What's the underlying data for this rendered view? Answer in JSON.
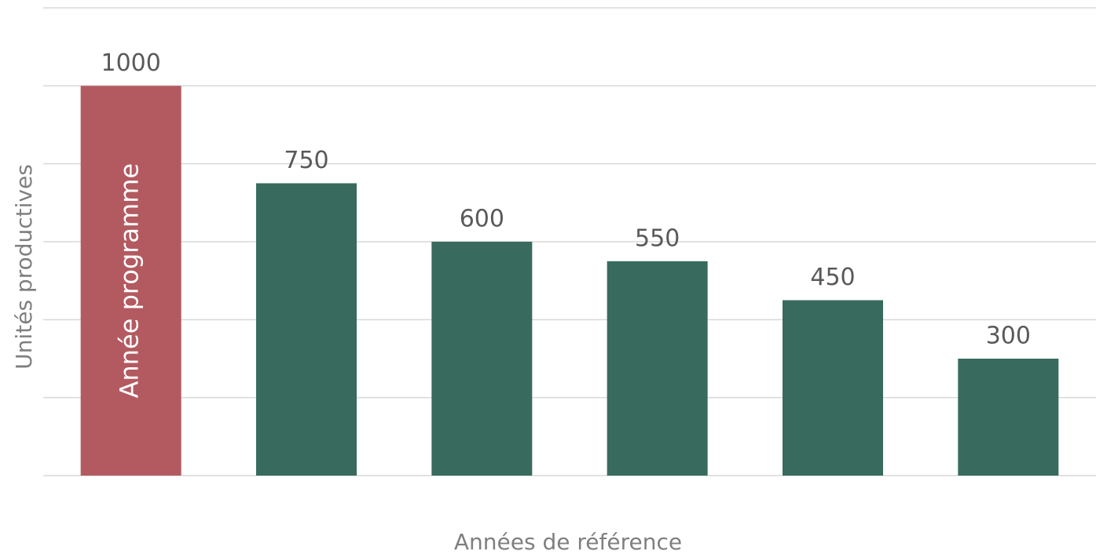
{
  "chart_data": {
    "type": "bar",
    "x_label": "Années de référence",
    "y_label": "Unités productives",
    "annotation": "Année programme",
    "categories": [
      null,
      null,
      null,
      null,
      null,
      null
    ],
    "values": [
      1000,
      750,
      600,
      550,
      450,
      300
    ],
    "colors": [
      "#b35a60",
      "#386b5e",
      "#386b5e",
      "#386b5e",
      "#386b5e",
      "#386b5e"
    ],
    "ylim": [
      0,
      1200
    ],
    "yticks": [
      0,
      200,
      400,
      600,
      800,
      1000,
      1200
    ],
    "grid": true
  }
}
